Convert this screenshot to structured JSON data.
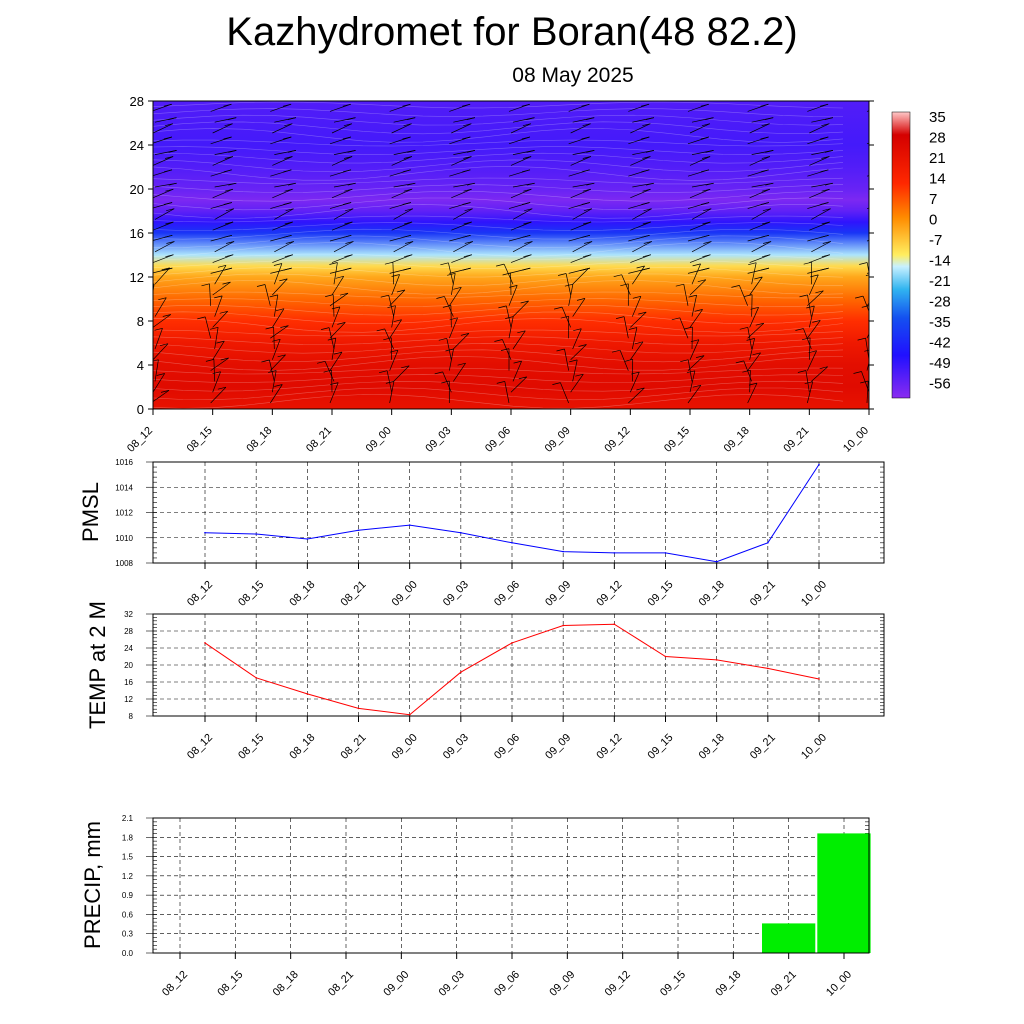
{
  "title": "Kazhydromet for Boran(48 82.2)",
  "subtitle": "08 May 2025",
  "chart_data": [
    {
      "type": "heatmap",
      "x": [
        "08_12",
        "08_15",
        "08_18",
        "08_21",
        "09_00",
        "09_03",
        "09_06",
        "09_09",
        "09_12",
        "09_15",
        "09_18",
        "09_21",
        "10_00"
      ],
      "y_ticks": [
        0,
        4,
        8,
        12,
        16,
        20,
        24,
        28
      ],
      "ylim": [
        0,
        28
      ],
      "colorbar": {
        "labels": [
          "35",
          "28",
          "21",
          "14",
          "7",
          "0",
          "-7",
          "-14",
          "-21",
          "-28",
          "-35",
          "-42",
          "-49",
          "-56"
        ],
        "range": [
          -63,
          38
        ]
      },
      "levels": [
        0,
        2,
        4,
        6,
        8,
        10,
        12,
        13,
        14,
        16,
        17,
        18,
        19,
        20,
        22,
        24,
        26,
        28
      ],
      "temps": [
        22,
        25,
        24,
        19,
        12,
        5,
        -3,
        -10,
        -18,
        -40,
        -50,
        -57,
        -61,
        -58,
        -55,
        -53,
        -54,
        -55
      ],
      "wind_barbs": true
    },
    {
      "type": "line",
      "ylabel": "PMSL",
      "x": [
        "08_12",
        "08_15",
        "08_18",
        "08_21",
        "09_00",
        "09_03",
        "09_06",
        "09_09",
        "09_12",
        "09_15",
        "09_18",
        "09_21",
        "10_00"
      ],
      "values": [
        1010.4,
        1010.3,
        1009.9,
        1010.6,
        1011.0,
        1010.4,
        1009.6,
        1008.9,
        1008.8,
        1008.8,
        1008.1,
        1009.6,
        1015.8
      ],
      "ylim": [
        1008,
        1016
      ],
      "y_ticks": [
        1008,
        1010,
        1012,
        1014,
        1016
      ],
      "color": "#0000ff"
    },
    {
      "type": "line",
      "ylabel": "TEMP at 2 M",
      "x": [
        "08_12",
        "08_15",
        "08_18",
        "08_21",
        "09_00",
        "09_03",
        "09_06",
        "09_09",
        "09_12",
        "09_15",
        "09_18",
        "09_21",
        "10_00"
      ],
      "values": [
        25.2,
        17.0,
        13.2,
        9.8,
        8.3,
        18.3,
        25.2,
        29.3,
        29.6,
        22.0,
        21.2,
        19.2,
        16.7
      ],
      "ylim": [
        8,
        32
      ],
      "y_ticks": [
        8,
        12,
        16,
        20,
        24,
        28,
        32
      ],
      "color": "#ff0000"
    },
    {
      "type": "bar",
      "ylabel": "PRECIP, mm",
      "x": [
        "08_12",
        "08_15",
        "08_18",
        "08_21",
        "09_00",
        "09_03",
        "09_06",
        "09_09",
        "09_12",
        "09_15",
        "09_18",
        "09_21",
        "10_00"
      ],
      "values": [
        0,
        0,
        0,
        0,
        0,
        0,
        0,
        0,
        0,
        0,
        0,
        0.46,
        1.86
      ],
      "ylim": [
        0,
        2.1
      ],
      "y_ticks": [
        "0.0",
        "0.3",
        "0.6",
        "0.9",
        "1.2",
        "1.5",
        "1.8",
        "2.1"
      ],
      "color": "#00ee00"
    }
  ]
}
